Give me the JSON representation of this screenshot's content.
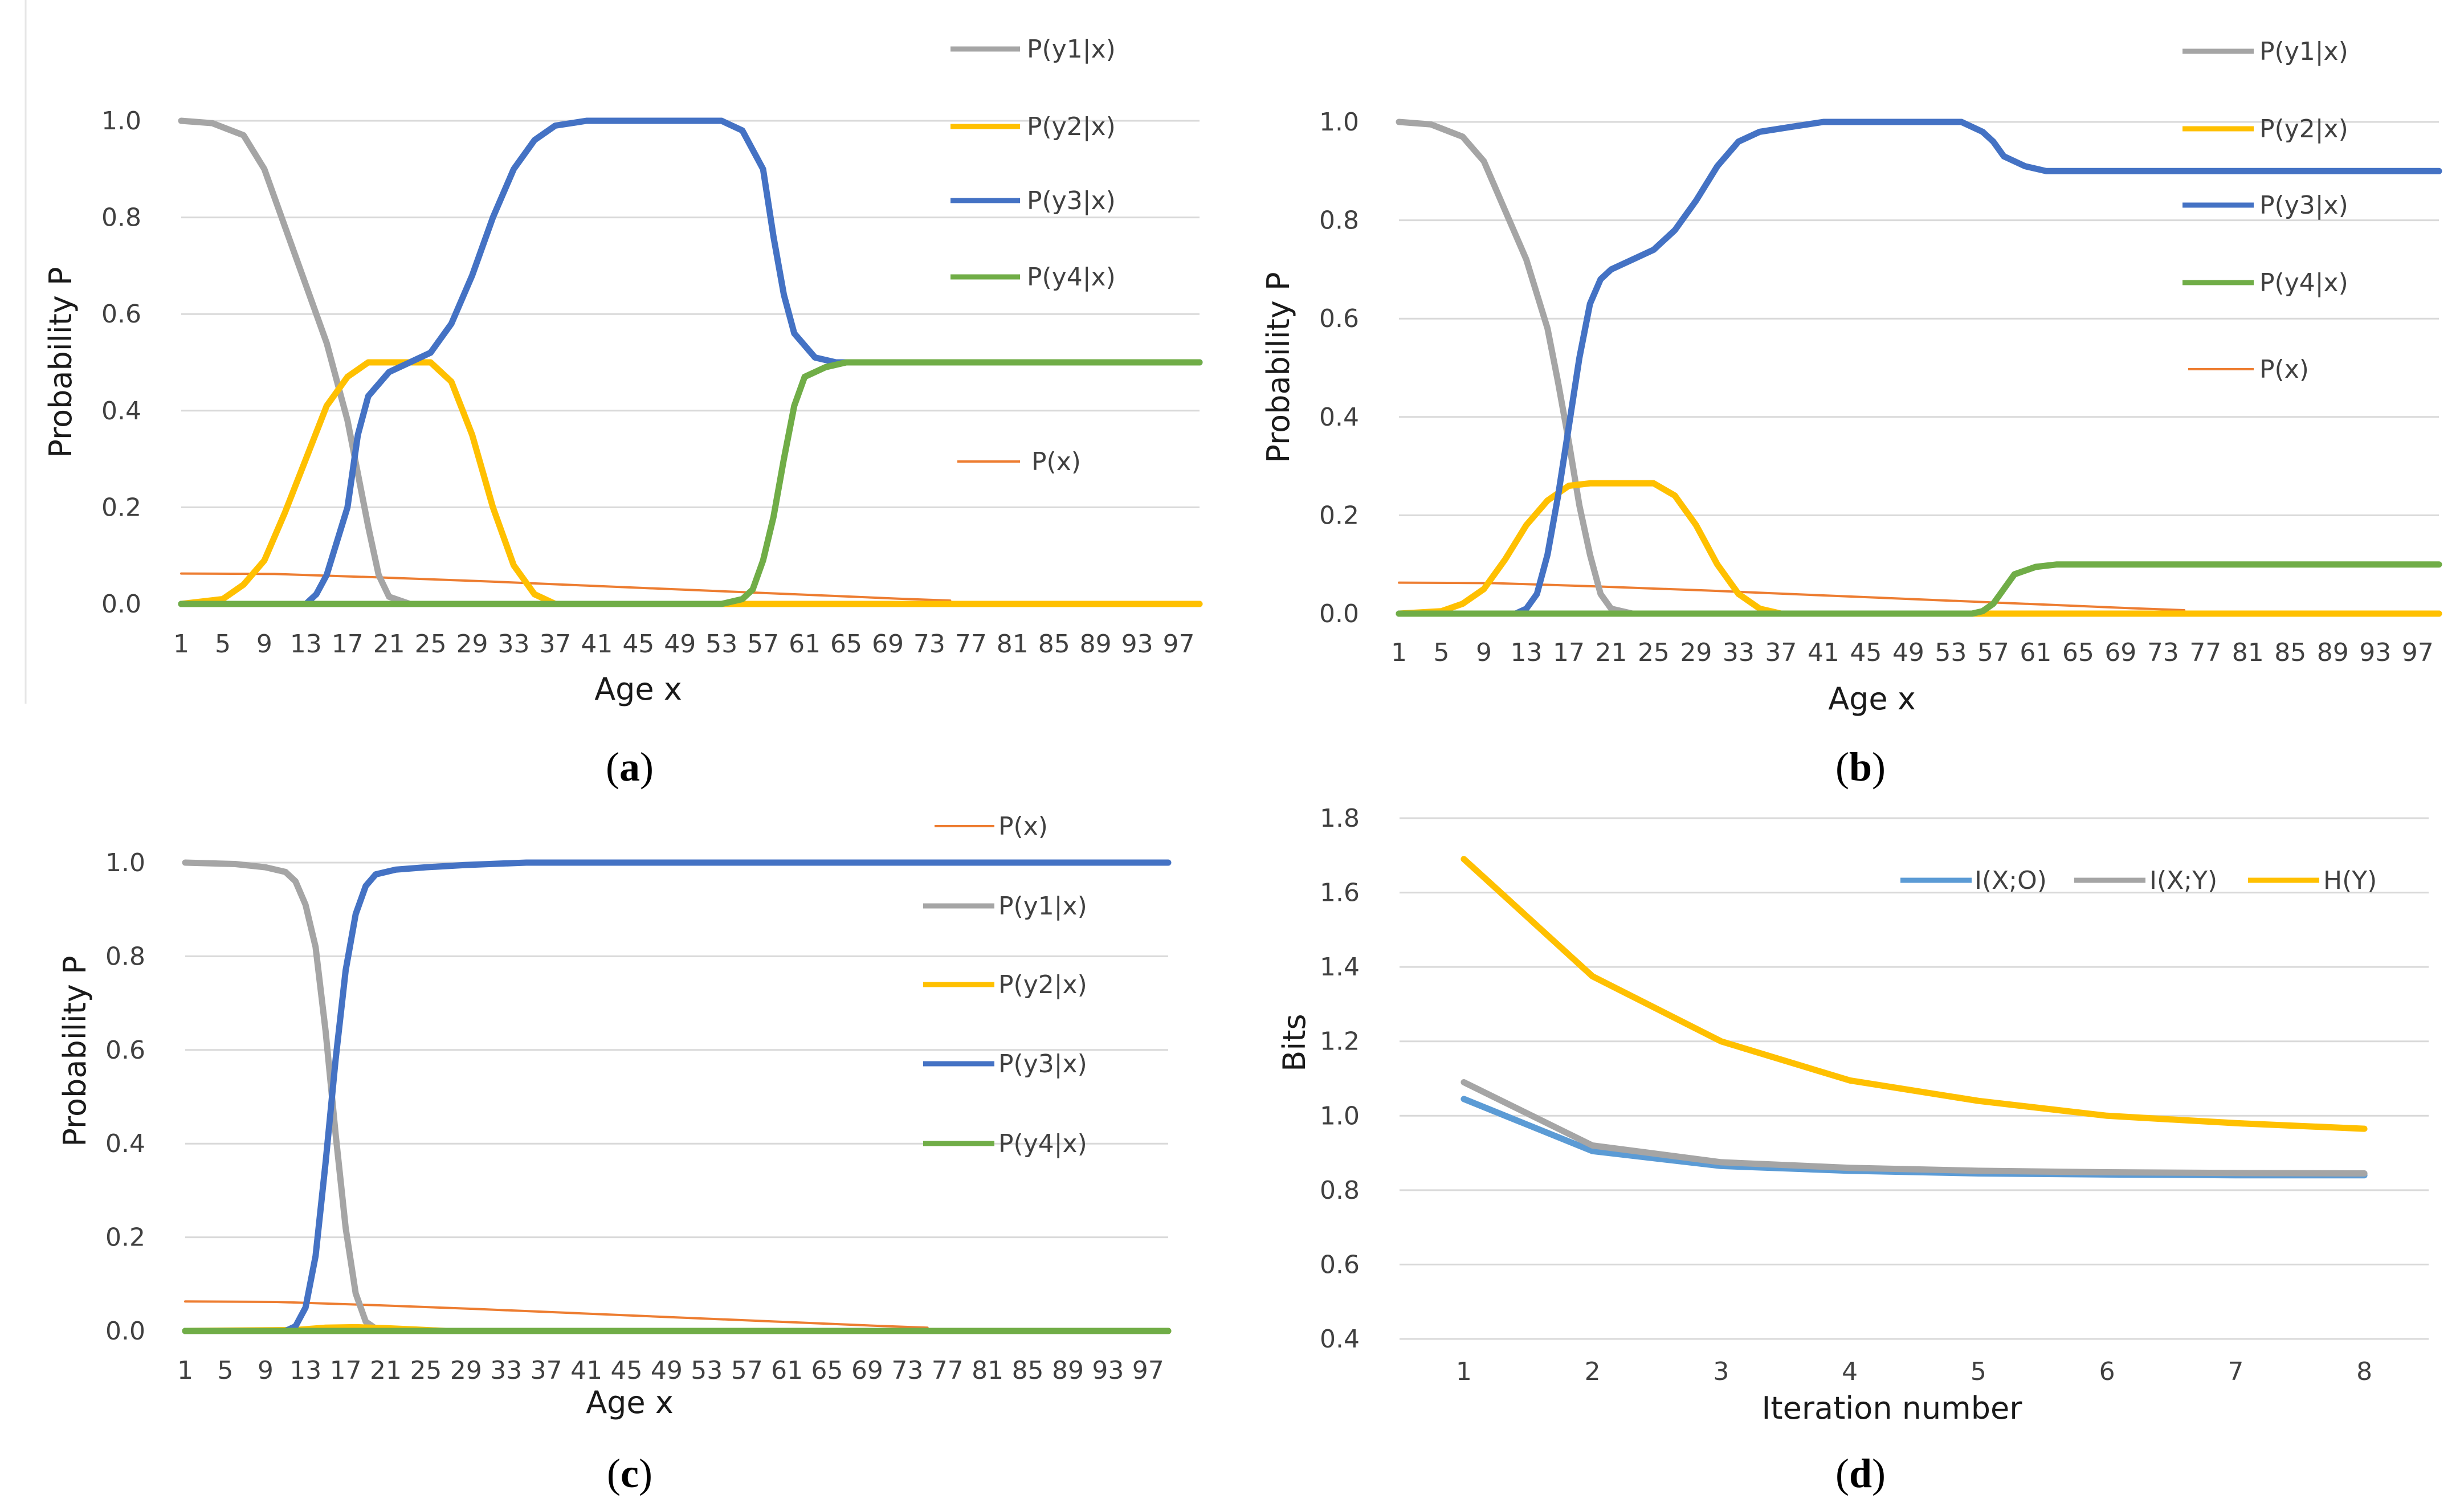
{
  "chart_data": [
    {
      "type": "line",
      "panel": "a",
      "caption_letter": "a",
      "xlabel": "Age x",
      "ylabel": "Probability P",
      "xlim": [
        1,
        99
      ],
      "ylim": [
        0,
        1
      ],
      "yticks": [
        "0.0",
        "0.2",
        "0.4",
        "0.6",
        "0.8",
        "1.0"
      ],
      "xticks": [
        "1",
        "5",
        "9",
        "13",
        "17",
        "21",
        "25",
        "29",
        "33",
        "37",
        "41",
        "45",
        "49",
        "53",
        "57",
        "61",
        "65",
        "69",
        "73",
        "77",
        "81",
        "85",
        "89",
        "93",
        "97"
      ],
      "series": [
        {
          "name": "P(y1|x)",
          "color": "#a5a5a5",
          "points": [
            [
              1,
              1.0
            ],
            [
              4,
              0.995
            ],
            [
              7,
              0.97
            ],
            [
              9,
              0.9
            ],
            [
              11,
              0.78
            ],
            [
              13,
              0.66
            ],
            [
              15,
              0.54
            ],
            [
              17,
              0.38
            ],
            [
              19,
              0.16
            ],
            [
              20,
              0.06
            ],
            [
              21,
              0.015
            ],
            [
              23,
              0.0
            ],
            [
              99,
              0.0
            ]
          ]
        },
        {
          "name": "P(y2|x)",
          "color": "#ffc000",
          "points": [
            [
              1,
              0.0
            ],
            [
              5,
              0.01
            ],
            [
              7,
              0.04
            ],
            [
              9,
              0.09
            ],
            [
              11,
              0.19
            ],
            [
              13,
              0.3
            ],
            [
              15,
              0.41
            ],
            [
              17,
              0.47
            ],
            [
              19,
              0.5
            ],
            [
              22,
              0.5
            ],
            [
              25,
              0.5
            ],
            [
              27,
              0.46
            ],
            [
              29,
              0.35
            ],
            [
              31,
              0.2
            ],
            [
              33,
              0.08
            ],
            [
              35,
              0.02
            ],
            [
              37,
              0.0
            ],
            [
              99,
              0.0
            ]
          ]
        },
        {
          "name": "P(y3|x)",
          "color": "#4472c4",
          "points": [
            [
              1,
              0.0
            ],
            [
              13,
              0.0
            ],
            [
              14,
              0.02
            ],
            [
              15,
              0.06
            ],
            [
              17,
              0.2
            ],
            [
              18,
              0.35
            ],
            [
              19,
              0.43
            ],
            [
              21,
              0.48
            ],
            [
              23,
              0.5
            ],
            [
              25,
              0.52
            ],
            [
              27,
              0.58
            ],
            [
              29,
              0.68
            ],
            [
              31,
              0.8
            ],
            [
              33,
              0.9
            ],
            [
              35,
              0.96
            ],
            [
              37,
              0.99
            ],
            [
              40,
              1.0
            ],
            [
              53,
              1.0
            ],
            [
              55,
              0.98
            ],
            [
              57,
              0.9
            ],
            [
              58,
              0.76
            ],
            [
              59,
              0.64
            ],
            [
              60,
              0.56
            ],
            [
              62,
              0.51
            ],
            [
              64,
              0.5
            ],
            [
              99,
              0.5
            ]
          ]
        },
        {
          "name": "P(y4|x)",
          "color": "#70ad47",
          "points": [
            [
              1,
              0.0
            ],
            [
              53,
              0.0
            ],
            [
              55,
              0.01
            ],
            [
              56,
              0.03
            ],
            [
              57,
              0.09
            ],
            [
              58,
              0.18
            ],
            [
              59,
              0.3
            ],
            [
              60,
              0.41
            ],
            [
              61,
              0.47
            ],
            [
              63,
              0.49
            ],
            [
              65,
              0.5
            ],
            [
              99,
              0.5
            ]
          ]
        },
        {
          "name": "P(x)",
          "color": "#ed7d31",
          "points": [
            [
              1,
              0.063
            ],
            [
              10,
              0.062
            ],
            [
              20,
              0.055
            ],
            [
              30,
              0.047
            ],
            [
              40,
              0.038
            ],
            [
              50,
              0.029
            ],
            [
              60,
              0.02
            ],
            [
              70,
              0.011
            ],
            [
              75,
              0.007
            ]
          ]
        }
      ],
      "legend": [
        "P(y1|x)",
        "P(y2|x)",
        "P(y3|x)",
        "P(y4|x)",
        "P(x)"
      ]
    },
    {
      "type": "line",
      "panel": "b",
      "caption_letter": "b",
      "xlabel": "Age x",
      "ylabel": "Probability P",
      "xlim": [
        1,
        99
      ],
      "ylim": [
        0,
        1
      ],
      "yticks": [
        "0.0",
        "0.2",
        "0.4",
        "0.6",
        "0.8",
        "1.0"
      ],
      "xticks": [
        "1",
        "5",
        "9",
        "13",
        "17",
        "21",
        "25",
        "29",
        "33",
        "37",
        "41",
        "45",
        "49",
        "53",
        "57",
        "61",
        "65",
        "69",
        "73",
        "77",
        "81",
        "85",
        "89",
        "93",
        "97"
      ],
      "series": [
        {
          "name": "P(y1|x)",
          "color": "#a5a5a5",
          "points": [
            [
              1,
              1.0
            ],
            [
              4,
              0.995
            ],
            [
              7,
              0.97
            ],
            [
              9,
              0.92
            ],
            [
              11,
              0.82
            ],
            [
              13,
              0.72
            ],
            [
              15,
              0.58
            ],
            [
              16,
              0.47
            ],
            [
              17,
              0.35
            ],
            [
              18,
              0.22
            ],
            [
              19,
              0.12
            ],
            [
              20,
              0.04
            ],
            [
              21,
              0.01
            ],
            [
              23,
              0.0
            ],
            [
              99,
              0.0
            ]
          ]
        },
        {
          "name": "P(y2|x)",
          "color": "#ffc000",
          "points": [
            [
              1,
              0.0
            ],
            [
              5,
              0.005
            ],
            [
              7,
              0.02
            ],
            [
              9,
              0.05
            ],
            [
              11,
              0.11
            ],
            [
              13,
              0.18
            ],
            [
              15,
              0.23
            ],
            [
              17,
              0.26
            ],
            [
              19,
              0.265
            ],
            [
              22,
              0.265
            ],
            [
              25,
              0.265
            ],
            [
              27,
              0.24
            ],
            [
              29,
              0.18
            ],
            [
              31,
              0.1
            ],
            [
              33,
              0.04
            ],
            [
              35,
              0.01
            ],
            [
              37,
              0.0
            ],
            [
              99,
              0.0
            ]
          ]
        },
        {
          "name": "P(y3|x)",
          "color": "#4472c4",
          "points": [
            [
              1,
              0.0
            ],
            [
              12,
              0.0
            ],
            [
              13,
              0.01
            ],
            [
              14,
              0.04
            ],
            [
              15,
              0.12
            ],
            [
              16,
              0.24
            ],
            [
              17,
              0.38
            ],
            [
              18,
              0.52
            ],
            [
              19,
              0.63
            ],
            [
              20,
              0.68
            ],
            [
              21,
              0.7
            ],
            [
              23,
              0.72
            ],
            [
              25,
              0.74
            ],
            [
              27,
              0.78
            ],
            [
              29,
              0.84
            ],
            [
              31,
              0.91
            ],
            [
              33,
              0.96
            ],
            [
              35,
              0.98
            ],
            [
              38,
              0.99
            ],
            [
              41,
              1.0
            ],
            [
              54,
              1.0
            ],
            [
              56,
              0.98
            ],
            [
              57,
              0.96
            ],
            [
              58,
              0.93
            ],
            [
              60,
              0.91
            ],
            [
              62,
              0.9
            ],
            [
              99,
              0.9
            ]
          ]
        },
        {
          "name": "P(y4|x)",
          "color": "#70ad47",
          "points": [
            [
              1,
              0.0
            ],
            [
              55,
              0.0
            ],
            [
              56,
              0.005
            ],
            [
              57,
              0.02
            ],
            [
              58,
              0.05
            ],
            [
              59,
              0.08
            ],
            [
              61,
              0.095
            ],
            [
              63,
              0.1
            ],
            [
              99,
              0.1
            ]
          ]
        },
        {
          "name": "P(x)",
          "color": "#ed7d31",
          "points": [
            [
              1,
              0.063
            ],
            [
              10,
              0.062
            ],
            [
              20,
              0.055
            ],
            [
              30,
              0.047
            ],
            [
              40,
              0.038
            ],
            [
              50,
              0.029
            ],
            [
              60,
              0.02
            ],
            [
              70,
              0.011
            ],
            [
              75,
              0.007
            ]
          ]
        }
      ],
      "legend": [
        "P(y1|x)",
        "P(y2|x)",
        "P(y3|x)",
        "P(y4|x)",
        "P(x)"
      ]
    },
    {
      "type": "line",
      "panel": "c",
      "caption_letter": "c",
      "xlabel": "Age x",
      "ylabel": "Probability P",
      "xlim": [
        1,
        99
      ],
      "ylim": [
        0,
        1
      ],
      "yticks": [
        "0.0",
        "0.2",
        "0.4",
        "0.6",
        "0.8",
        "1.0"
      ],
      "xticks": [
        "1",
        "5",
        "9",
        "13",
        "17",
        "21",
        "25",
        "29",
        "33",
        "37",
        "41",
        "45",
        "49",
        "53",
        "57",
        "61",
        "65",
        "69",
        "73",
        "77",
        "81",
        "85",
        "89",
        "93",
        "97"
      ],
      "series": [
        {
          "name": "P(y1|x)",
          "color": "#a5a5a5",
          "points": [
            [
              1,
              1.0
            ],
            [
              6,
              0.997
            ],
            [
              9,
              0.99
            ],
            [
              11,
              0.98
            ],
            [
              12,
              0.96
            ],
            [
              13,
              0.91
            ],
            [
              14,
              0.82
            ],
            [
              15,
              0.64
            ],
            [
              16,
              0.42
            ],
            [
              17,
              0.22
            ],
            [
              18,
              0.08
            ],
            [
              19,
              0.02
            ],
            [
              20,
              0.005
            ],
            [
              22,
              0.0
            ],
            [
              99,
              0.0
            ]
          ]
        },
        {
          "name": "P(y2|x)",
          "color": "#ffc000",
          "points": [
            [
              1,
              0.0
            ],
            [
              12,
              0.002
            ],
            [
              15,
              0.007
            ],
            [
              18,
              0.008
            ],
            [
              21,
              0.006
            ],
            [
              24,
              0.003
            ],
            [
              27,
              0.0
            ],
            [
              99,
              0.0
            ]
          ]
        },
        {
          "name": "P(y3|x)",
          "color": "#4472c4",
          "points": [
            [
              1,
              0.0
            ],
            [
              11,
              0.0
            ],
            [
              12,
              0.01
            ],
            [
              13,
              0.05
            ],
            [
              14,
              0.16
            ],
            [
              15,
              0.36
            ],
            [
              16,
              0.58
            ],
            [
              17,
              0.77
            ],
            [
              18,
              0.89
            ],
            [
              19,
              0.95
            ],
            [
              20,
              0.975
            ],
            [
              22,
              0.985
            ],
            [
              25,
              0.99
            ],
            [
              29,
              0.995
            ],
            [
              35,
              1.0
            ],
            [
              99,
              1.0
            ]
          ]
        },
        {
          "name": "P(y4|x)",
          "color": "#70ad47",
          "points": [
            [
              1,
              0.0
            ],
            [
              99,
              0.0
            ]
          ]
        },
        {
          "name": "P(x)",
          "color": "#ed7d31",
          "points": [
            [
              1,
              0.063
            ],
            [
              10,
              0.062
            ],
            [
              20,
              0.055
            ],
            [
              30,
              0.047
            ],
            [
              40,
              0.038
            ],
            [
              50,
              0.029
            ],
            [
              60,
              0.02
            ],
            [
              70,
              0.011
            ],
            [
              75,
              0.007
            ]
          ]
        }
      ],
      "legend": [
        "P(x)",
        "P(y1|x)",
        "P(y2|x)",
        "P(y3|x)",
        "P(y4|x)"
      ]
    },
    {
      "type": "line",
      "panel": "d",
      "caption_letter": "d",
      "xlabel": "Iteration number",
      "ylabel": "Bits",
      "xlim": [
        0.5,
        8.5
      ],
      "ylim": [
        0.4,
        1.8
      ],
      "yticks": [
        "0.4",
        "0.6",
        "0.8",
        "1.0",
        "1.2",
        "1.4",
        "1.6",
        "1.8"
      ],
      "categories": [
        "1",
        "2",
        "3",
        "4",
        "5",
        "6",
        "7",
        "8"
      ],
      "series": [
        {
          "name": "I(X;O)",
          "color": "#5b9bd5",
          "values": [
            1.045,
            0.905,
            0.865,
            0.852,
            0.845,
            0.842,
            0.84,
            0.84
          ]
        },
        {
          "name": "I(X;Y)",
          "color": "#a5a5a5",
          "values": [
            1.09,
            0.92,
            0.875,
            0.86,
            0.852,
            0.848,
            0.846,
            0.845
          ]
        },
        {
          "name": "H(Y)",
          "color": "#ffc000",
          "values": [
            1.69,
            1.375,
            1.2,
            1.095,
            1.04,
            1.0,
            0.98,
            0.965
          ]
        }
      ],
      "legend": [
        "I(X;O)",
        "I(X;Y)",
        "H(Y)"
      ]
    }
  ]
}
